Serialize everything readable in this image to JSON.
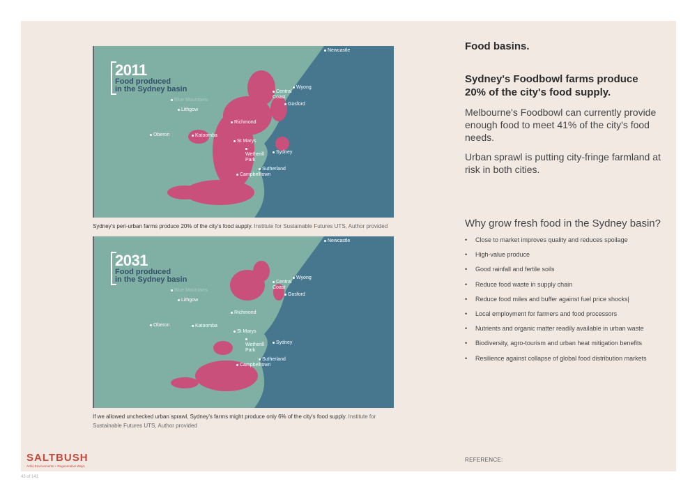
{
  "maps": [
    {
      "year": "2011",
      "subtitle": "Food produced\nin the Sydney basin",
      "caption_main": "Sydney's peri-urban farms produce 20% of the city's food supply.",
      "caption_source": "Institute for Sustainable Futures UTS, Author provided"
    },
    {
      "year": "2031",
      "subtitle": "Food produced\nin the Sydney basin",
      "caption_main": "If we allowed unchecked urban sprawl, Sydney's farms might produce only 6% of the city's food supply.",
      "caption_source": "Institute for Sustainable Futures UTS, Author provided"
    }
  ],
  "towns": {
    "newcastle": "Newcastle",
    "wyong": "Wyong",
    "central_coast": "Central Coast",
    "gosford": "Gosford",
    "blue_mountains": "Blue Mountains",
    "lithgow": "Lithgow",
    "richmond": "Richmond",
    "oberon": "Oberon",
    "katoomba": "Katoomba",
    "st_marys": "St Marys",
    "wetherill_park": "Wetherill Park",
    "sydney": "Sydney",
    "sutherland": "Sutherland",
    "campbelltown": "Campbelltown"
  },
  "right": {
    "title": "Food basins.",
    "headline": "Sydney's Foodbowl farms produce 20% of the city's food supply.",
    "para1": "Melbourne's Foodbowl can currently provide enough food to meet 41% of the city's food needs.",
    "para2": "Urban sprawl is putting city-fringe farmland at risk in both cities.",
    "why_heading": "Why grow fresh food in the Sydney basin?",
    "bullets": [
      "Close to market improves quality and reduces spoilage",
      "High-value produce",
      "Good rainfall and fertile soils",
      "Reduce food waste in supply chain",
      "Reduce food miles and buffer against fuel price shocks|",
      "Local employment for farmers and food processors",
      "Nutrients and organic matter readily available in urban waste",
      "Biodiversity, agro-tourism and urban heat mitigation benefits",
      "Resilience against collapse of global food distribution markets"
    ],
    "reference": "REFERENCE:"
  },
  "logo": {
    "word": "SALTBUSH",
    "tagline": "Artful Environments + Regenerative Ways"
  },
  "page_number": "43 of 141",
  "colors": {
    "land": "#7fb0a3",
    "sea": "#46778f",
    "farmland": "#c8507a",
    "logo": "#c8473b",
    "slide_bg": "#f3e9e3"
  }
}
